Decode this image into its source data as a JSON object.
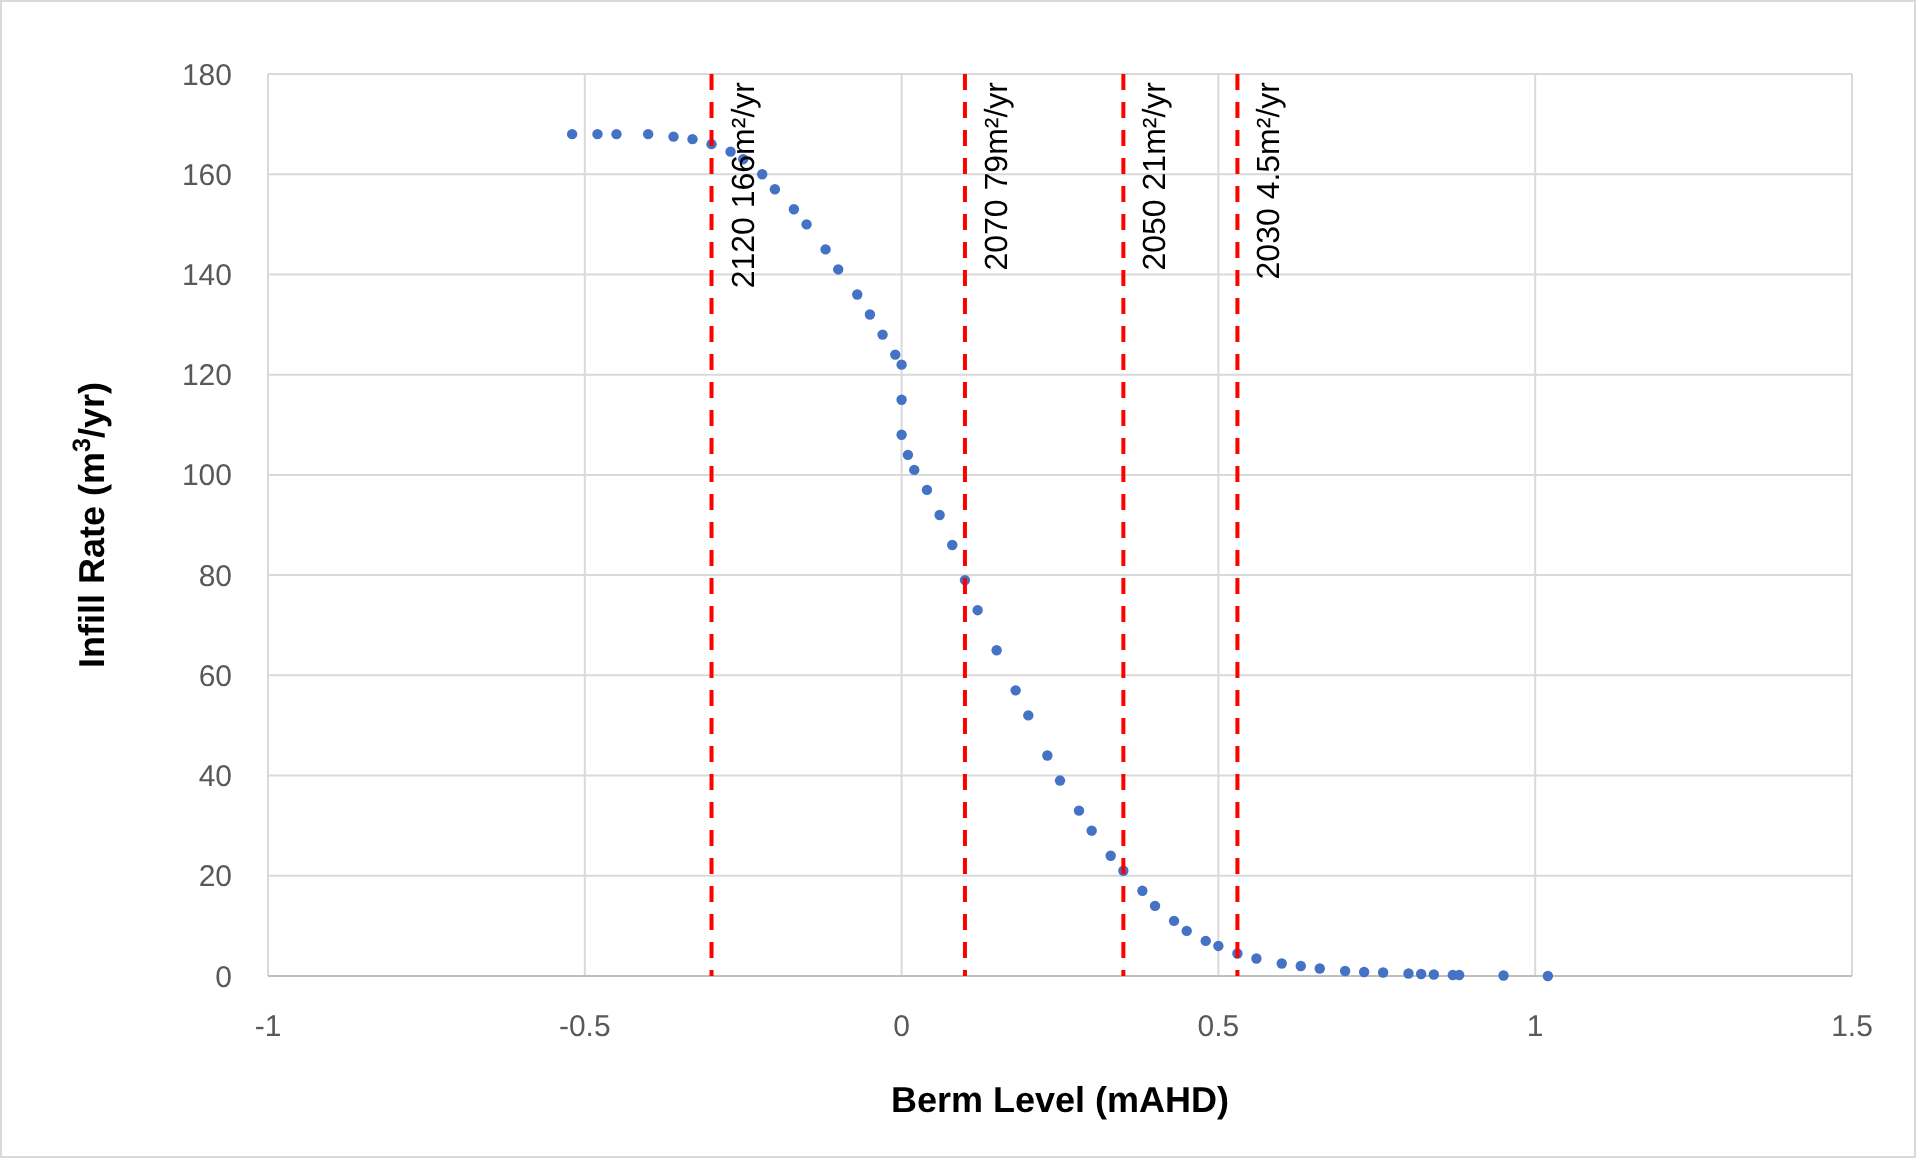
{
  "chart_data": {
    "type": "scatter",
    "xlabel": "Berm Level (mAHD)",
    "ylabel": "Infill Rate (m$^{3}$/yr)",
    "xlim": [
      -1,
      1.5
    ],
    "xticks": [
      -1,
      -0.5,
      0,
      0.5,
      1,
      1.5
    ],
    "ylim": [
      0,
      180
    ],
    "yticks": [
      0,
      20,
      40,
      60,
      80,
      100,
      120,
      140,
      160,
      180
    ],
    "grid": true,
    "marker": "circle",
    "series": [
      {
        "color": "#4472c4",
        "x": [
          -0.52,
          -0.48,
          -0.45,
          -0.4,
          -0.36,
          -0.33,
          -0.3,
          -0.27,
          -0.25,
          -0.22,
          -0.2,
          -0.17,
          -0.15,
          -0.12,
          -0.1,
          -0.07,
          -0.05,
          -0.03,
          -0.01,
          0,
          0,
          0,
          0.01,
          0.02,
          0.04,
          0.06,
          0.08,
          0.1,
          0.12,
          0.15,
          0.18,
          0.2,
          0.23,
          0.25,
          0.28,
          0.3,
          0.33,
          0.35,
          0.38,
          0.4,
          0.43,
          0.45,
          0.48,
          0.5,
          0.53,
          0.56,
          0.6,
          0.63,
          0.66,
          0.7,
          0.73,
          0.76,
          0.8,
          0.82,
          0.84,
          0.87,
          0.88,
          0.95,
          1.02
        ],
        "values": [
          168,
          168,
          168,
          168,
          167.5,
          167,
          166,
          164.5,
          163,
          160,
          157,
          153,
          150,
          145,
          141,
          136,
          132,
          128,
          124,
          122,
          115,
          108,
          104,
          101,
          97,
          92,
          86,
          79,
          73,
          65,
          57,
          52,
          44,
          39,
          33,
          29,
          24,
          21,
          17,
          14,
          11,
          9,
          7,
          6,
          4.5,
          3.5,
          2.5,
          2,
          1.5,
          1,
          0.8,
          0.7,
          0.5,
          0.4,
          0.3,
          0.2,
          0.2,
          0.1,
          0
        ]
      }
    ],
    "ref_lines": [
      {
        "axis": "x",
        "value": -0.3,
        "label": "2120  166m²/yr",
        "color": "#ff0000",
        "line_style": "dashed"
      },
      {
        "axis": "x",
        "value": 0.1,
        "label": "2070  79m²/yr",
        "color": "#ff0000",
        "line_style": "dashed"
      },
      {
        "axis": "x",
        "value": 0.35,
        "label": "2050  21m²/yr",
        "color": "#ff0000",
        "line_style": "dashed"
      },
      {
        "axis": "x",
        "value": 0.53,
        "label": "2030  4.5m²/yr",
        "color": "#ff0000",
        "line_style": "dashed"
      }
    ]
  }
}
